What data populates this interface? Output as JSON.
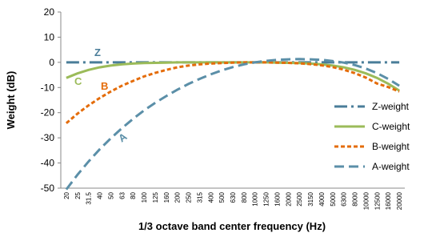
{
  "chart_data": {
    "type": "line",
    "ylabel": "Weight (dB)",
    "xlabel": "1/3 octave band center frequency (Hz)",
    "categories": [
      "20",
      "25",
      "31.5",
      "40",
      "50",
      "63",
      "80",
      "100",
      "125",
      "160",
      "200",
      "250",
      "315",
      "400",
      "500",
      "630",
      "800",
      "1000",
      "1250",
      "1600",
      "2000",
      "2500",
      "3150",
      "4000",
      "5000",
      "6300",
      "8000",
      "10000",
      "12500",
      "16000",
      "20000"
    ],
    "ylim": [
      -50,
      20
    ],
    "yticks": [
      -50,
      -40,
      -30,
      -20,
      -10,
      0,
      10,
      20
    ],
    "legend": "right",
    "series": [
      {
        "name": "Z-weight",
        "label": "Z",
        "color": "#4a7d99",
        "dash": "dashdot",
        "values": [
          0,
          0,
          0,
          0,
          0,
          0,
          0,
          0,
          0,
          0,
          0,
          0,
          0,
          0,
          0,
          0,
          0,
          0,
          0,
          0,
          0,
          0,
          0,
          0,
          0,
          0,
          0,
          0,
          0,
          0,
          0
        ]
      },
      {
        "name": "C-weight",
        "label": "C",
        "color": "#9bbb59",
        "dash": "solid",
        "values": [
          -6.2,
          -4.4,
          -3.0,
          -2.0,
          -1.3,
          -0.8,
          -0.5,
          -0.3,
          -0.2,
          -0.1,
          0,
          0,
          0,
          0,
          0,
          0,
          0,
          0,
          0,
          -0.1,
          -0.2,
          -0.3,
          -0.5,
          -0.8,
          -1.3,
          -2.0,
          -3.0,
          -4.4,
          -6.2,
          -8.5,
          -11.2
        ]
      },
      {
        "name": "B-weight",
        "label": "B",
        "color": "#e46c0a",
        "dash": "dotted",
        "values": [
          -24.2,
          -20.4,
          -17.1,
          -14.2,
          -11.6,
          -9.3,
          -7.4,
          -5.6,
          -4.2,
          -3.0,
          -2.0,
          -1.3,
          -0.8,
          -0.5,
          -0.3,
          -0.1,
          0,
          0,
          0,
          -0.1,
          -0.2,
          -0.4,
          -0.7,
          -1.2,
          -1.9,
          -2.9,
          -4.3,
          -6.1,
          -8.4,
          -9.8,
          -11.6
        ]
      },
      {
        "name": "A-weight",
        "label": "A",
        "color": "#5b8fa8",
        "dash": "dashed",
        "values": [
          -50.5,
          -44.7,
          -39.4,
          -34.6,
          -30.2,
          -26.2,
          -22.5,
          -19.1,
          -16.1,
          -13.4,
          -10.9,
          -8.6,
          -6.6,
          -4.8,
          -3.2,
          -1.9,
          -0.8,
          0,
          0.6,
          1.0,
          1.2,
          1.3,
          1.2,
          1.0,
          0.5,
          -0.1,
          -1.1,
          -2.5,
          -4.3,
          -6.6,
          -9.3
        ]
      }
    ]
  }
}
